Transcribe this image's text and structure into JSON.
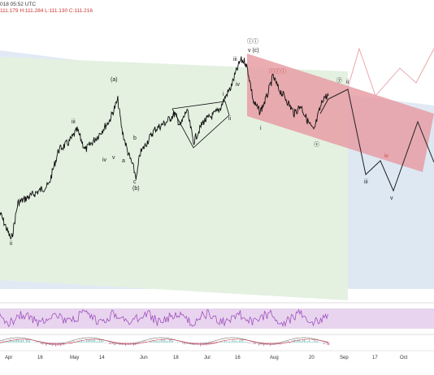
{
  "header": {
    "time": "018 05:52 UTC",
    "ohlc": "111.179 H:111.284 L:111.130 C:111.216"
  },
  "x_ticks": [
    "Apr",
    "16",
    "May",
    "14",
    "Jun",
    "18",
    "Jul",
    "16",
    "Aug",
    "20",
    "Sep",
    "17",
    "Oct"
  ],
  "wave_labels": [
    {
      "text": "ii",
      "color": "#222"
    },
    {
      "text": "iii",
      "color": "#222"
    },
    {
      "text": "(a)",
      "color": "#222"
    },
    {
      "text": "v",
      "color": "#222"
    },
    {
      "text": "iv",
      "color": "#222"
    },
    {
      "text": "a",
      "color": "#222"
    },
    {
      "text": "b",
      "color": "#222"
    },
    {
      "text": "c",
      "color": "#222"
    },
    {
      "text": "(b)",
      "color": "#222"
    },
    {
      "text": "i",
      "color": "#222"
    },
    {
      "text": "ii",
      "color": "#222"
    },
    {
      "text": "iii",
      "color": "#222"
    },
    {
      "text": "iv",
      "color": "#222"
    },
    {
      "text": "ⓘⓘ",
      "color": "#222"
    },
    {
      "text": "v (c)",
      "color": "#222"
    },
    {
      "text": "i",
      "color": "#222"
    },
    {
      "text": "ⓘⓘⓘ",
      "color": "#cc4a4a"
    },
    {
      "text": "ⓧ",
      "color": "#222"
    },
    {
      "text": "ⓨ",
      "color": "#222"
    },
    {
      "text": "ii",
      "color": "#222"
    },
    {
      "text": "iii",
      "color": "#222"
    },
    {
      "text": "iv",
      "color": "#cc4a4a"
    },
    {
      "text": "v",
      "color": "#222"
    }
  ],
  "colors": {
    "green_zone": "#e3f0e0",
    "blue_zone": "#dfe9f3",
    "red_channel": "#e8a0a6",
    "price": "#111111",
    "projection_black": "#222222",
    "projection_red": "#e6a0a6",
    "rsi_band": "#e8d4ee",
    "rsi_line": "#a050c0"
  }
}
